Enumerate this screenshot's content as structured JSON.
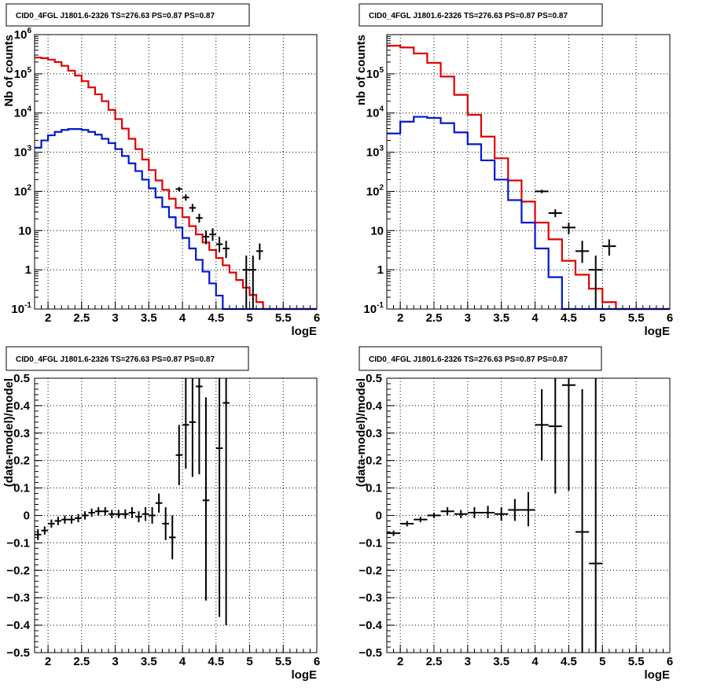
{
  "figure_title": "CID0_4FGL J1801.6-2326 TS=276.63 PS=0.87 PS=0.87",
  "colors": {
    "data": "#000000",
    "model_total": "#e00000",
    "model_source": "#0018d0"
  },
  "chart_data": [
    {
      "type": "histogram",
      "yscale": "log",
      "title": "CID0_4FGL J1801.6-2326 TS=276.63 PS=0.87 PS=0.87",
      "xlabel": "logE",
      "ylabel": "Nb of counts",
      "xlim": [
        1.8,
        6
      ],
      "ylim": [
        0.1,
        1000000
      ],
      "grid": true,
      "xticks": [
        "2",
        "2.5",
        "3",
        "3.5",
        "4",
        "4.5",
        "5",
        "5.5",
        "6"
      ],
      "yticks": [
        "10^-1",
        "1",
        "10",
        "10^2",
        "10^3",
        "10^4",
        "10^5",
        "10^6"
      ],
      "series": [
        {
          "role": "model_total",
          "bin_edges": [
            1.8,
            1.9,
            2.0,
            2.1,
            2.2,
            2.3,
            2.4,
            2.5,
            2.6,
            2.7,
            2.8,
            2.9,
            3.0,
            3.1,
            3.2,
            3.3,
            3.4,
            3.5,
            3.6,
            3.7,
            3.8,
            3.9,
            4.0,
            4.1,
            4.2,
            4.3,
            4.4,
            4.5,
            4.6,
            4.7,
            4.8,
            4.9,
            5.0,
            5.1,
            5.2,
            5.3,
            5.4,
            5.5,
            5.6,
            5.7,
            5.8,
            5.9,
            6.0
          ],
          "values": [
            260000,
            250000,
            230000,
            200000,
            160000,
            120000,
            90000,
            65000,
            45000,
            30000,
            20000,
            12000,
            7000,
            4000,
            2200,
            1200,
            650,
            350,
            190,
            110,
            65,
            38,
            22,
            13,
            8,
            5,
            3.2,
            2,
            1.3,
            0.85,
            0.55,
            0.35,
            0.23,
            0.15,
            0.1,
            0.1,
            0.1,
            0.1,
            0.1,
            0.1,
            0.1,
            0.1
          ]
        },
        {
          "role": "model_source",
          "bin_edges": [
            1.8,
            1.9,
            2.0,
            2.1,
            2.2,
            2.3,
            2.4,
            2.5,
            2.6,
            2.7,
            2.8,
            2.9,
            3.0,
            3.1,
            3.2,
            3.3,
            3.4,
            3.5,
            3.6,
            3.7,
            3.8,
            3.9,
            4.0,
            4.1,
            4.2,
            4.3,
            4.4,
            4.5,
            4.6,
            4.7,
            4.8,
            4.9,
            5.0,
            5.1,
            5.2,
            5.3,
            5.4,
            5.5,
            5.6,
            5.7,
            5.8,
            5.9,
            6.0
          ],
          "values": [
            1300,
            2000,
            2700,
            3300,
            3700,
            3900,
            3900,
            3700,
            3300,
            2800,
            2200,
            1700,
            1200,
            800,
            520,
            330,
            200,
            120,
            70,
            40,
            22,
            12,
            6.5,
            3.5,
            1.8,
            0.9,
            0.45,
            0.22,
            0.1,
            0.1,
            0.1,
            0.1,
            0.1,
            0.1,
            0.1,
            0.1,
            0.1,
            0.1,
            0.1,
            0.1,
            0.1,
            0.1
          ]
        }
      ],
      "points": [
        {
          "x": 3.95,
          "y": 115,
          "xerr": 0.05,
          "ylo": 100,
          "yhi": 130
        },
        {
          "x": 4.05,
          "y": 70,
          "xerr": 0.05,
          "ylo": 58,
          "yhi": 84
        },
        {
          "x": 4.15,
          "y": 38,
          "xerr": 0.05,
          "ylo": 30,
          "yhi": 48
        },
        {
          "x": 4.25,
          "y": 21,
          "xerr": 0.05,
          "ylo": 16,
          "yhi": 27
        },
        {
          "x": 4.35,
          "y": 7,
          "xerr": 0.05,
          "ylo": 4.5,
          "yhi": 10
        },
        {
          "x": 4.45,
          "y": 8,
          "xerr": 0.05,
          "ylo": 5.5,
          "yhi": 11.5
        },
        {
          "x": 4.55,
          "y": 4.5,
          "xerr": 0.05,
          "ylo": 2.8,
          "yhi": 7
        },
        {
          "x": 4.65,
          "y": 3.5,
          "xerr": 0.05,
          "ylo": 2,
          "yhi": 5.5
        },
        {
          "x": 4.95,
          "y": 1,
          "xerr": 0.05,
          "ylo": 0.1,
          "yhi": 2.3
        },
        {
          "x": 5.05,
          "y": 1,
          "xerr": 0.05,
          "ylo": 0.1,
          "yhi": 2.3
        },
        {
          "x": 5.15,
          "y": 3,
          "xerr": 0.05,
          "ylo": 1.8,
          "yhi": 4.7
        }
      ]
    },
    {
      "type": "histogram",
      "yscale": "log",
      "title": "CID0_4FGL J1801.6-2326 TS=276.63 PS=0.87 PS=0.87",
      "xlabel": "logE",
      "ylabel": "nb of counts",
      "xlim": [
        1.8,
        6
      ],
      "ylim": [
        0.1,
        1000000
      ],
      "grid": true,
      "xticks": [
        "2",
        "2.5",
        "3",
        "3.5",
        "4",
        "4.5",
        "5",
        "5.5",
        "6"
      ],
      "yticks": [
        "10^-1",
        "1",
        "10",
        "10^2",
        "10^3",
        "10^4",
        "10^5"
      ],
      "series": [
        {
          "role": "model_total",
          "bin_edges": [
            1.8,
            2.0,
            2.2,
            2.4,
            2.6,
            2.8,
            3.0,
            3.2,
            3.4,
            3.6,
            3.8,
            4.0,
            4.2,
            4.4,
            4.6,
            4.8,
            5.0,
            5.2,
            5.4,
            5.6,
            5.8,
            6.0
          ],
          "values": [
            520000,
            470000,
            330000,
            190000,
            85000,
            29000,
            9000,
            2500,
            700,
            190,
            55,
            16,
            6,
            1.7,
            0.75,
            0.33,
            0.15,
            0.1,
            0.1,
            0.1,
            0.1
          ]
        },
        {
          "role": "model_source",
          "bin_edges": [
            1.8,
            2.0,
            2.2,
            2.4,
            2.6,
            2.8,
            3.0,
            3.2,
            3.4,
            3.6,
            3.8,
            4.0,
            4.2,
            4.4,
            4.6,
            4.8,
            5.0,
            5.2,
            5.4,
            5.6,
            5.8,
            6.0
          ],
          "values": [
            3000,
            6000,
            8000,
            7500,
            5500,
            3200,
            1600,
            620,
            200,
            60,
            16,
            3.5,
            0.65,
            0.1,
            0.1,
            0.1,
            0.1,
            0.1,
            0.1,
            0.1,
            0.1
          ]
        }
      ],
      "points": [
        {
          "x": 4.1,
          "y": 100,
          "xerr": 0.1,
          "ylo": 90,
          "yhi": 110
        },
        {
          "x": 4.3,
          "y": 28,
          "xerr": 0.1,
          "ylo": 22,
          "yhi": 35
        },
        {
          "x": 4.5,
          "y": 12,
          "xerr": 0.1,
          "ylo": 8,
          "yhi": 16
        },
        {
          "x": 4.7,
          "y": 3,
          "xerr": 0.1,
          "ylo": 1.5,
          "yhi": 5.5
        },
        {
          "x": 4.9,
          "y": 1,
          "xerr": 0.1,
          "ylo": 0.1,
          "yhi": 2.3
        },
        {
          "x": 5.1,
          "y": 4,
          "xerr": 0.1,
          "ylo": 2.3,
          "yhi": 6
        }
      ]
    },
    {
      "type": "scatter",
      "title": "CID0_4FGL J1801.6-2326 TS=276.63 PS=0.87 PS=0.87",
      "xlabel": "logE",
      "ylabel": "(data-model)/model",
      "xlim": [
        1.8,
        6
      ],
      "ylim": [
        -0.5,
        0.5
      ],
      "grid": true,
      "xticks": [
        "2",
        "2.5",
        "3",
        "3.5",
        "4",
        "4.5",
        "5",
        "5.5",
        "6"
      ],
      "yticks": [
        "-0.5",
        "-0.4",
        "-0.3",
        "-0.2",
        "-0.1",
        "0",
        "0.1",
        "0.2",
        "0.3",
        "0.4",
        "0.5"
      ],
      "points": [
        {
          "x": 1.85,
          "y": -0.07,
          "xerr": 0.05,
          "ylo": -0.09,
          "yhi": -0.05
        },
        {
          "x": 1.95,
          "y": -0.055,
          "xerr": 0.05,
          "ylo": -0.07,
          "yhi": -0.04
        },
        {
          "x": 2.05,
          "y": -0.03,
          "xerr": 0.05,
          "ylo": -0.045,
          "yhi": -0.015
        },
        {
          "x": 2.15,
          "y": -0.02,
          "xerr": 0.05,
          "ylo": -0.035,
          "yhi": -0.005
        },
        {
          "x": 2.25,
          "y": -0.015,
          "xerr": 0.05,
          "ylo": -0.03,
          "yhi": 0
        },
        {
          "x": 2.35,
          "y": -0.015,
          "xerr": 0.05,
          "ylo": -0.03,
          "yhi": 0
        },
        {
          "x": 2.45,
          "y": -0.01,
          "xerr": 0.05,
          "ylo": -0.025,
          "yhi": 0.005
        },
        {
          "x": 2.55,
          "y": 0,
          "xerr": 0.05,
          "ylo": -0.015,
          "yhi": 0.015
        },
        {
          "x": 2.65,
          "y": 0.01,
          "xerr": 0.05,
          "ylo": -0.005,
          "yhi": 0.025
        },
        {
          "x": 2.75,
          "y": 0.015,
          "xerr": 0.05,
          "ylo": 0,
          "yhi": 0.03
        },
        {
          "x": 2.85,
          "y": 0.015,
          "xerr": 0.05,
          "ylo": 0,
          "yhi": 0.03
        },
        {
          "x": 2.95,
          "y": 0.005,
          "xerr": 0.05,
          "ylo": -0.01,
          "yhi": 0.02
        },
        {
          "x": 3.05,
          "y": 0.005,
          "xerr": 0.05,
          "ylo": -0.01,
          "yhi": 0.02
        },
        {
          "x": 3.15,
          "y": 0.005,
          "xerr": 0.05,
          "ylo": -0.012,
          "yhi": 0.022
        },
        {
          "x": 3.25,
          "y": 0.01,
          "xerr": 0.05,
          "ylo": -0.01,
          "yhi": 0.03
        },
        {
          "x": 3.35,
          "y": -0.005,
          "xerr": 0.05,
          "ylo": -0.025,
          "yhi": 0.015
        },
        {
          "x": 3.45,
          "y": 0.005,
          "xerr": 0.05,
          "ylo": -0.02,
          "yhi": 0.03
        },
        {
          "x": 3.55,
          "y": 0,
          "xerr": 0.05,
          "ylo": -0.03,
          "yhi": 0.03
        },
        {
          "x": 3.65,
          "y": 0.045,
          "xerr": 0.05,
          "ylo": 0.01,
          "yhi": 0.08
        },
        {
          "x": 3.75,
          "y": -0.03,
          "xerr": 0.05,
          "ylo": -0.09,
          "yhi": 0.03
        },
        {
          "x": 3.85,
          "y": -0.08,
          "xerr": 0.05,
          "ylo": -0.16,
          "yhi": 0
        },
        {
          "x": 3.95,
          "y": 0.22,
          "xerr": 0.05,
          "ylo": 0.11,
          "yhi": 0.33
        },
        {
          "x": 4.05,
          "y": 0.33,
          "xerr": 0.05,
          "ylo": 0.17,
          "yhi": 0.5
        },
        {
          "x": 4.15,
          "y": 0.34,
          "xerr": 0.05,
          "ylo": 0.14,
          "yhi": 0.5
        },
        {
          "x": 4.25,
          "y": 0.47,
          "xerr": 0.05,
          "ylo": 0.15,
          "yhi": 0.5
        },
        {
          "x": 4.35,
          "y": 0.055,
          "xerr": 0.05,
          "ylo": -0.31,
          "yhi": 0.43
        },
        {
          "x": 4.55,
          "y": 0.245,
          "xerr": 0.05,
          "ylo": -0.37,
          "yhi": 0.5
        },
        {
          "x": 4.65,
          "y": 0.41,
          "xerr": 0.05,
          "ylo": -0.4,
          "yhi": 0.5
        }
      ]
    },
    {
      "type": "scatter",
      "title": "CID0_4FGL J1801.6-2326 TS=276.63 PS=0.87 PS=0.87",
      "xlabel": "logE",
      "ylabel": "(data-model)/model",
      "xlim": [
        1.8,
        6
      ],
      "ylim": [
        -0.5,
        0.5
      ],
      "grid": true,
      "xticks": [
        "2",
        "2.5",
        "3",
        "3.5",
        "4",
        "4.5",
        "5",
        "5.5",
        "6"
      ],
      "yticks": [
        "-0.5",
        "-0.4",
        "-0.3",
        "-0.2",
        "-0.1",
        "0",
        "0.1",
        "0.2",
        "0.3",
        "0.4",
        "0.5"
      ],
      "points": [
        {
          "x": 1.9,
          "y": -0.065,
          "xerr": 0.1,
          "ylo": -0.075,
          "yhi": -0.055
        },
        {
          "x": 2.1,
          "y": -0.03,
          "xerr": 0.1,
          "ylo": -0.04,
          "yhi": -0.02
        },
        {
          "x": 2.3,
          "y": -0.015,
          "xerr": 0.1,
          "ylo": -0.025,
          "yhi": -0.005
        },
        {
          "x": 2.5,
          "y": 0,
          "xerr": 0.1,
          "ylo": -0.01,
          "yhi": 0.01
        },
        {
          "x": 2.7,
          "y": 0.015,
          "xerr": 0.1,
          "ylo": 0,
          "yhi": 0.03
        },
        {
          "x": 2.9,
          "y": 0.005,
          "xerr": 0.1,
          "ylo": -0.01,
          "yhi": 0.02
        },
        {
          "x": 3.1,
          "y": 0.01,
          "xerr": 0.1,
          "ylo": -0.01,
          "yhi": 0.03
        },
        {
          "x": 3.3,
          "y": 0.01,
          "xerr": 0.1,
          "ylo": -0.01,
          "yhi": 0.035
        },
        {
          "x": 3.5,
          "y": 0.005,
          "xerr": 0.1,
          "ylo": -0.02,
          "yhi": 0.03
        },
        {
          "x": 3.7,
          "y": 0.02,
          "xerr": 0.1,
          "ylo": -0.02,
          "yhi": 0.06
        },
        {
          "x": 3.9,
          "y": 0.02,
          "xerr": 0.1,
          "ylo": -0.04,
          "yhi": 0.085
        },
        {
          "x": 4.1,
          "y": 0.33,
          "xerr": 0.1,
          "ylo": 0.2,
          "yhi": 0.46
        },
        {
          "x": 4.3,
          "y": 0.325,
          "xerr": 0.1,
          "ylo": 0.08,
          "yhi": 0.5
        },
        {
          "x": 4.5,
          "y": 0.475,
          "xerr": 0.1,
          "ylo": 0.09,
          "yhi": 0.5
        },
        {
          "x": 4.7,
          "y": -0.06,
          "xerr": 0.1,
          "ylo": -0.5,
          "yhi": 0.46
        },
        {
          "x": 4.9,
          "y": -0.175,
          "xerr": 0.1,
          "ylo": -0.5,
          "yhi": 0.5
        }
      ]
    }
  ]
}
